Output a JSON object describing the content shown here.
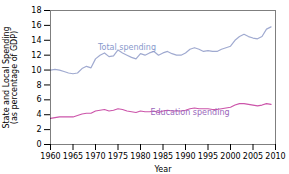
{
  "chart_data": {
    "type": "line",
    "x": [
      1960,
      1961,
      1962,
      1963,
      1964,
      1965,
      1966,
      1967,
      1968,
      1969,
      1970,
      1971,
      1972,
      1973,
      1974,
      1975,
      1976,
      1977,
      1978,
      1979,
      1980,
      1981,
      1982,
      1983,
      1984,
      1985,
      1986,
      1987,
      1988,
      1989,
      1990,
      1991,
      1992,
      1993,
      1994,
      1995,
      1996,
      1997,
      1998,
      1999,
      2000,
      2001,
      2002,
      2003,
      2004,
      2005,
      2006,
      2007,
      2008,
      2009
    ],
    "series": [
      {
        "color": "#a0aad0",
        "values": [
          10.0,
          10.1,
          10.0,
          9.8,
          9.6,
          9.5,
          9.6,
          10.2,
          10.5,
          10.3,
          11.5,
          12.0,
          12.3,
          11.8,
          11.9,
          12.7,
          12.3,
          12.0,
          11.7,
          11.5,
          12.2,
          12.0,
          12.3,
          12.5,
          12.0,
          12.3,
          12.5,
          12.2,
          12.0,
          12.0,
          12.3,
          12.8,
          13.0,
          12.8,
          12.5,
          12.6,
          12.5,
          12.5,
          12.8,
          13.0,
          13.2,
          14.0,
          14.5,
          14.8,
          14.5,
          14.3,
          14.2,
          14.5,
          15.5,
          15.8
        ]
      },
      {
        "color": "#cc55aa",
        "values": [
          3.5,
          3.6,
          3.7,
          3.7,
          3.7,
          3.7,
          3.9,
          4.1,
          4.2,
          4.2,
          4.5,
          4.6,
          4.7,
          4.5,
          4.6,
          4.8,
          4.7,
          4.5,
          4.4,
          4.3,
          4.5,
          4.4,
          4.4,
          4.5,
          4.3,
          4.5,
          4.6,
          4.5,
          4.5,
          4.5,
          4.6,
          4.8,
          4.9,
          4.8,
          4.8,
          4.8,
          4.7,
          4.7,
          4.8,
          4.9,
          5.0,
          5.3,
          5.5,
          5.5,
          5.4,
          5.3,
          5.2,
          5.3,
          5.5,
          5.4
        ]
      }
    ],
    "xlabel": "Year",
    "ylabel": "State and Local Spending\n(as percentage of GDP)",
    "xlim": [
      1960,
      2010
    ],
    "ylim": [
      0,
      18
    ],
    "xticks": [
      1960,
      1965,
      1970,
      1975,
      1980,
      1985,
      1990,
      1995,
      2000,
      2005,
      2010
    ],
    "yticks": [
      0,
      2,
      4,
      6,
      8,
      10,
      12,
      14,
      16,
      18
    ],
    "grid": false,
    "annotations": [
      {
        "text": "Total spending",
        "x": 1977,
        "y": 12.7,
        "color": "#8899cc"
      },
      {
        "text": "Education spending",
        "x": 1991,
        "y": 4.0,
        "color": "#9966bb"
      }
    ]
  }
}
